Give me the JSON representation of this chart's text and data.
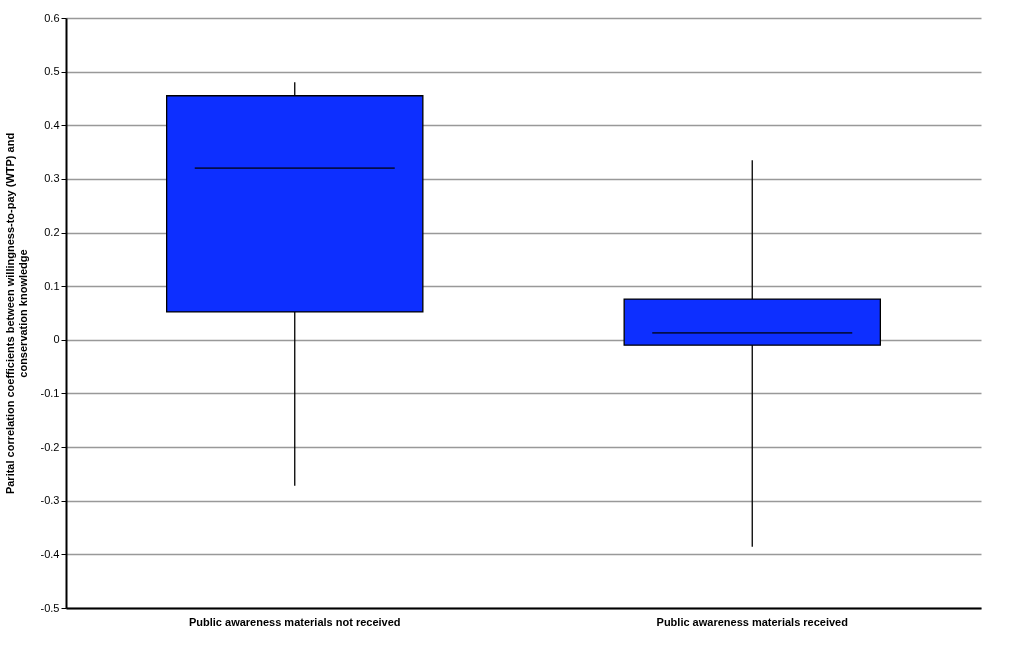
{
  "chart_data": {
    "type": "box",
    "ylabel": "Parital correlation coefficients between willingness-to-pay (WTP) and\nconservation knowledge",
    "categories": [
      "Public awareness materials not received",
      "Public awareness materials received"
    ],
    "series": [
      {
        "color": "#0d2fff",
        "boxes": [
          {
            "low": -0.272,
            "q1": 0.052,
            "median": 0.32,
            "q3": 0.455,
            "high": 0.48
          },
          {
            "low": -0.386,
            "q1": -0.01,
            "median": 0.013,
            "q3": 0.076,
            "high": 0.335
          }
        ]
      }
    ],
    "ylim": [
      -0.5,
      0.6
    ],
    "yticks": [
      -0.5,
      -0.4,
      -0.3,
      -0.2,
      -0.1,
      0,
      0.1,
      0.2,
      0.3,
      0.4,
      0.5,
      0.6
    ],
    "grid": "y"
  }
}
